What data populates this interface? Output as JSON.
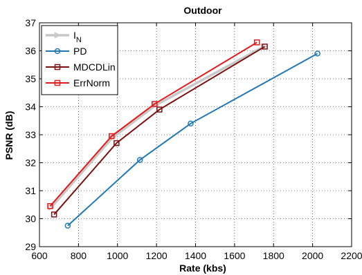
{
  "chart_data": {
    "type": "line",
    "title": "Outdoor",
    "xlabel": "Rate (kbs)",
    "ylabel": "PSNR (dB)",
    "xlim": [
      600,
      2200
    ],
    "ylim": [
      29,
      37
    ],
    "xticks": [
      600,
      800,
      1000,
      1200,
      1400,
      1600,
      1800,
      2000,
      2200
    ],
    "yticks": [
      29,
      30,
      31,
      32,
      33,
      34,
      35,
      36,
      37
    ],
    "grid": true,
    "legend_position": "top-left",
    "series": [
      {
        "name": "I",
        "name_subscript": "N",
        "color": "#c8c8c8",
        "marker": "triangle-right",
        "x": [
          660,
          975,
          1195,
          1750
        ],
        "y": [
          30.4,
          32.9,
          34.05,
          36.15
        ]
      },
      {
        "name": "PD",
        "color": "#1f77b4",
        "marker": "circle",
        "x": [
          745,
          1115,
          1375,
          2025
        ],
        "y": [
          29.75,
          32.1,
          33.4,
          35.9
        ]
      },
      {
        "name": "MDCDLin",
        "color": "#7b1010",
        "marker": "square",
        "x": [
          675,
          995,
          1215,
          1755
        ],
        "y": [
          30.15,
          32.7,
          33.9,
          36.15
        ]
      },
      {
        "name": "ErrNorm",
        "color": "#e31a1c",
        "marker": "square",
        "x": [
          655,
          970,
          1190,
          1715
        ],
        "y": [
          30.45,
          32.95,
          34.1,
          36.3
        ]
      }
    ]
  }
}
